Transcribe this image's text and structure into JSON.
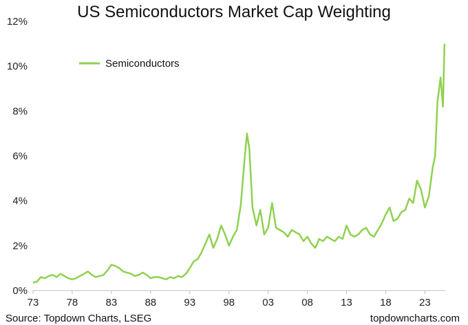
{
  "chart_data": {
    "type": "line",
    "title": "US Semiconductors Market Cap Weighting",
    "xlabel": "",
    "ylabel": "",
    "xlim": [
      1973,
      2025.6
    ],
    "ylim": [
      0,
      12
    ],
    "y_ticks": [
      "0%",
      "2%",
      "4%",
      "6%",
      "8%",
      "10%",
      "12%"
    ],
    "x_ticks": [
      {
        "label": "73",
        "year": 1973
      },
      {
        "label": "78",
        "year": 1978
      },
      {
        "label": "83",
        "year": 1983
      },
      {
        "label": "88",
        "year": 1988
      },
      {
        "label": "93",
        "year": 1993
      },
      {
        "label": "98",
        "year": 1998
      },
      {
        "label": "03",
        "year": 2003
      },
      {
        "label": "08",
        "year": 2008
      },
      {
        "label": "13",
        "year": 2013
      },
      {
        "label": "18",
        "year": 2018
      },
      {
        "label": "23",
        "year": 2023
      }
    ],
    "grid": false,
    "legend_position": "top-left",
    "color": "#8fd14f",
    "series": [
      {
        "name": "Semiconductors",
        "x": [
          1973.0,
          1973.5,
          1974.0,
          1974.5,
          1975.0,
          1975.5,
          1976.0,
          1976.5,
          1977.0,
          1977.5,
          1978.0,
          1978.5,
          1979.0,
          1979.5,
          1980.0,
          1980.5,
          1981.0,
          1981.5,
          1982.0,
          1982.5,
          1983.0,
          1983.5,
          1984.0,
          1984.5,
          1985.0,
          1985.5,
          1986.0,
          1986.5,
          1987.0,
          1987.5,
          1988.0,
          1988.5,
          1989.0,
          1989.5,
          1990.0,
          1990.5,
          1991.0,
          1991.5,
          1992.0,
          1992.5,
          1993.0,
          1993.5,
          1994.0,
          1994.5,
          1995.0,
          1995.5,
          1996.0,
          1996.5,
          1997.0,
          1997.5,
          1998.0,
          1998.5,
          1999.0,
          1999.5,
          2000.0,
          2000.3,
          2000.6,
          2001.0,
          2001.5,
          2002.0,
          2002.5,
          2003.0,
          2003.5,
          2004.0,
          2004.5,
          2005.0,
          2005.5,
          2006.0,
          2006.5,
          2007.0,
          2007.5,
          2008.0,
          2008.5,
          2009.0,
          2009.5,
          2010.0,
          2010.5,
          2011.0,
          2011.5,
          2012.0,
          2012.5,
          2013.0,
          2013.5,
          2014.0,
          2014.5,
          2015.0,
          2015.5,
          2016.0,
          2016.5,
          2017.0,
          2017.5,
          2018.0,
          2018.5,
          2019.0,
          2019.5,
          2020.0,
          2020.5,
          2021.0,
          2021.5,
          2022.0,
          2022.5,
          2023.0,
          2023.5,
          2024.0,
          2024.3,
          2024.6,
          2025.0,
          2025.3,
          2025.5
        ],
        "values": [
          0.35,
          0.4,
          0.6,
          0.55,
          0.65,
          0.7,
          0.6,
          0.75,
          0.65,
          0.55,
          0.5,
          0.55,
          0.65,
          0.75,
          0.85,
          0.7,
          0.6,
          0.65,
          0.7,
          0.9,
          1.15,
          1.1,
          1.0,
          0.85,
          0.8,
          0.75,
          0.65,
          0.7,
          0.8,
          0.7,
          0.55,
          0.6,
          0.6,
          0.55,
          0.5,
          0.6,
          0.55,
          0.65,
          0.6,
          0.75,
          1.0,
          1.3,
          1.4,
          1.7,
          2.1,
          2.5,
          1.9,
          2.3,
          2.9,
          2.5,
          2.0,
          2.4,
          2.7,
          3.8,
          5.9,
          7.0,
          6.3,
          3.7,
          2.9,
          3.6,
          2.5,
          2.8,
          3.9,
          2.8,
          2.7,
          2.6,
          2.4,
          2.7,
          2.6,
          2.5,
          2.2,
          2.4,
          2.1,
          1.9,
          2.3,
          2.2,
          2.4,
          2.3,
          2.2,
          2.4,
          2.3,
          2.9,
          2.5,
          2.4,
          2.5,
          2.7,
          2.8,
          2.5,
          2.4,
          2.7,
          3.0,
          3.4,
          3.7,
          3.1,
          3.2,
          3.5,
          3.6,
          4.1,
          3.9,
          4.9,
          4.5,
          3.7,
          4.2,
          5.5,
          6.0,
          8.4,
          9.5,
          8.2,
          11.0
        ]
      }
    ]
  },
  "legend": {
    "label": "Semiconductors"
  },
  "footer": {
    "source": "Source: Topdown Charts, LSEG",
    "brand": "topdowncharts.com"
  }
}
